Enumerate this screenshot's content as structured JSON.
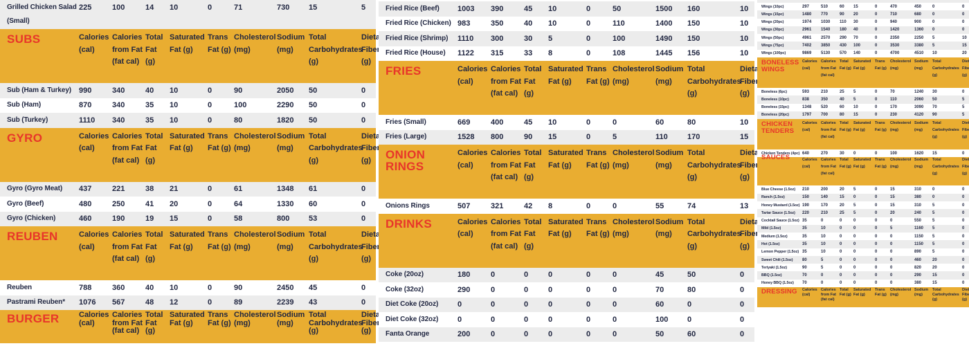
{
  "colors": {
    "header_bg": "#e9ad31",
    "title": "#e8362a",
    "row_alt": "#ececec",
    "text": "#1f2540"
  },
  "columns": [
    "Calories (cal)",
    "Calories from Fat (fat cal)",
    "Total Fat (g)",
    "Saturated Fat (g)",
    "Trans Fat (g)",
    "Cholesterol (mg)",
    "Sodium (mg)",
    "Total Carbohydrates (g)",
    "Dietary Fiber (g)"
  ],
  "panels": [
    {
      "sections": [
        {
          "title": null,
          "rows": [
            [
              "Grilled Chicken Salad (Small)",
              "225",
              "100",
              "14",
              "10",
              "0",
              "71",
              "730",
              "15",
              "5"
            ]
          ]
        },
        {
          "title": "SUBS",
          "rows": [
            [
              "Sub (Ham & Turkey)",
              "990",
              "340",
              "40",
              "10",
              "0",
              "90",
              "2050",
              "50",
              "0"
            ],
            [
              "Sub (Ham)",
              "870",
              "340",
              "35",
              "10",
              "0",
              "100",
              "2290",
              "50",
              "0"
            ],
            [
              "Sub (Turkey)",
              "1110",
              "340",
              "35",
              "10",
              "0",
              "80",
              "1820",
              "50",
              "0"
            ]
          ]
        },
        {
          "title": "GYRO",
          "rows": [
            [
              "Gyro (Gyro Meat)",
              "437",
              "221",
              "38",
              "21",
              "0",
              "61",
              "1348",
              "61",
              "0"
            ],
            [
              "Gyro (Beef)",
              "480",
              "250",
              "41",
              "20",
              "0",
              "64",
              "1330",
              "60",
              "0"
            ],
            [
              "Gyro (Chicken)",
              "460",
              "190",
              "19",
              "15",
              "0",
              "58",
              "800",
              "53",
              "0"
            ]
          ]
        },
        {
          "title": "REUBEN",
          "rows": [
            [
              "Reuben",
              "788",
              "360",
              "40",
              "10",
              "0",
              "90",
              "2450",
              "45",
              "0"
            ],
            [
              "Pastrami Reuben*",
              "1076",
              "567",
              "48",
              "12",
              "0",
              "89",
              "2239",
              "43",
              "0"
            ]
          ]
        },
        {
          "title": "BURGER",
          "rows": []
        }
      ]
    },
    {
      "sections": [
        {
          "title": null,
          "rows": [
            [
              "Fried Rice (Beef)",
              "1003",
              "390",
              "45",
              "10",
              "0",
              "50",
              "1500",
              "160",
              "10"
            ],
            [
              "Fried Rice (Chicken)",
              "983",
              "350",
              "40",
              "10",
              "0",
              "110",
              "1400",
              "150",
              "10"
            ],
            [
              "Fried Rice (Shrimp)",
              "1110",
              "300",
              "30",
              "5",
              "0",
              "100",
              "1490",
              "150",
              "10"
            ],
            [
              "Fried Rice (House)",
              "1122",
              "315",
              "33",
              "8",
              "0",
              "108",
              "1445",
              "156",
              "10"
            ]
          ]
        },
        {
          "title": "FRIES",
          "rows": [
            [
              "Fries (Small)",
              "669",
              "400",
              "45",
              "10",
              "0",
              "0",
              "60",
              "80",
              "10"
            ],
            [
              "Fries (Large)",
              "1528",
              "800",
              "90",
              "15",
              "0",
              "5",
              "110",
              "170",
              "15"
            ]
          ]
        },
        {
          "title": "ONION RINGS",
          "rows": [
            [
              "Onions Rings",
              "507",
              "321",
              "42",
              "8",
              "0",
              "0",
              "55",
              "74",
              "13"
            ]
          ]
        },
        {
          "title": "DRINKS",
          "rows": [
            [
              "Coke (20oz)",
              "180",
              "0",
              "0",
              "0",
              "0",
              "0",
              "45",
              "50",
              "0"
            ],
            [
              "Coke (32oz)",
              "290",
              "0",
              "0",
              "0",
              "0",
              "0",
              "70",
              "80",
              "0"
            ],
            [
              "Diet Coke (20oz)",
              "0",
              "0",
              "0",
              "0",
              "0",
              "0",
              "60",
              "0",
              "0"
            ],
            [
              "Diet Coke (32oz)",
              "0",
              "0",
              "0",
              "0",
              "0",
              "0",
              "100",
              "0",
              "0"
            ],
            [
              "Fanta Orange",
              "200",
              "0",
              "0",
              "0",
              "0",
              "0",
              "50",
              "60",
              "0"
            ]
          ]
        }
      ]
    },
    {
      "sections": [
        {
          "title": null,
          "rows": [
            [
              "Wings (10pc)",
              "297",
              "510",
              "60",
              "15",
              "0",
              "470",
              "450",
              "0",
              "0"
            ],
            [
              "Wings (15pc)",
              "1480",
              "770",
              "90",
              "20",
              "0",
              "710",
              "680",
              "0",
              "0"
            ],
            [
              "Wings (20pc)",
              "1974",
              "1030",
              "110",
              "30",
              "0",
              "940",
              "900",
              "0",
              "0"
            ],
            [
              "Wings (30pc)",
              "2961",
              "1540",
              "180",
              "40",
              "0",
              "1420",
              "1360",
              "0",
              "0"
            ],
            [
              "Wings (50pc)",
              "4961",
              "2570",
              "290",
              "70",
              "0",
              "2350",
              "2250",
              "5",
              "10"
            ],
            [
              "Wings (75pc)",
              "7402",
              "3850",
              "430",
              "100",
              "0",
              "3530",
              "3380",
              "5",
              "15"
            ],
            [
              "Wings (100pc)",
              "9869",
              "5130",
              "570",
              "140",
              "0",
              "4700",
              "4510",
              "10",
              "20"
            ]
          ]
        },
        {
          "title": "BONELESS WINGS",
          "rows": [
            [
              "Boneless (6pc)",
              "593",
              "210",
              "25",
              "5",
              "0",
              "70",
              "1240",
              "30",
              "0"
            ],
            [
              "Boneless (10pc)",
              "838",
              "350",
              "40",
              "5",
              "0",
              "110",
              "2060",
              "50",
              "5"
            ],
            [
              "Boneless (15pc)",
              "1348",
              "520",
              "60",
              "10",
              "0",
              "170",
              "3090",
              "70",
              "5"
            ],
            [
              "Boneless (20pc)",
              "1797",
              "700",
              "80",
              "15",
              "0",
              "230",
              "4120",
              "90",
              "5"
            ]
          ]
        },
        {
          "title": "CHICKEN TENDERS",
          "rows": [
            [
              "Chicken Tenders (4pc)",
              "640",
              "270",
              "30",
              "0",
              "0",
              "100",
              "1620",
              "15",
              "0"
            ]
          ]
        },
        {
          "title": "SAUCES",
          "clip": true,
          "rows": [
            [
              "Blue Cheese (1.5oz)",
              "210",
              "200",
              "20",
              "5",
              "0",
              "15",
              "310",
              "0",
              "0"
            ],
            [
              "Ranch (1.5oz)",
              "150",
              "140",
              "15",
              "0",
              "0",
              "15",
              "380",
              "0",
              "0"
            ],
            [
              "Honey Mustard (1.5oz)",
              "190",
              "170",
              "20",
              "5",
              "0",
              "15",
              "310",
              "5",
              "0"
            ],
            [
              "Tartar Sauce (1.5oz)",
              "220",
              "210",
              "25",
              "5",
              "0",
              "20",
              "240",
              "5",
              "0"
            ],
            [
              "Cocktail Sauce (1.5oz)",
              "35",
              "0",
              "0",
              "0",
              "0",
              "0",
              "550",
              "5",
              "0"
            ],
            [
              "Mild (1.5oz)",
              "35",
              "10",
              "0",
              "0",
              "0",
              "5",
              "1160",
              "5",
              "0"
            ],
            [
              "Medium (1.5oz)",
              "35",
              "10",
              "0",
              "0",
              "0",
              "0",
              "1150",
              "5",
              "0"
            ],
            [
              "Hot (1.5oz)",
              "35",
              "10",
              "0",
              "0",
              "0",
              "0",
              "1150",
              "5",
              "0"
            ],
            [
              "Lemon Pepper (1.5oz)",
              "35",
              "10",
              "0",
              "0",
              "0",
              "0",
              "890",
              "5",
              "0"
            ],
            [
              "Sweet Chili (1.5oz)",
              "80",
              "5",
              "0",
              "0",
              "0",
              "0",
              "460",
              "20",
              "0"
            ],
            [
              "Teriyaki (1.5oz)",
              "90",
              "5",
              "0",
              "0",
              "0",
              "0",
              "820",
              "20",
              "0"
            ],
            [
              "BBQ (1.5oz)",
              "70",
              "0",
              "0",
              "0",
              "0",
              "0",
              "290",
              "15",
              "0"
            ],
            [
              "Honey BBQ (1.5oz)",
              "70",
              "0",
              "0",
              "0",
              "0",
              "0",
              "380",
              "15",
              "0"
            ]
          ]
        },
        {
          "title": "DRESSING",
          "rows": []
        }
      ]
    }
  ]
}
